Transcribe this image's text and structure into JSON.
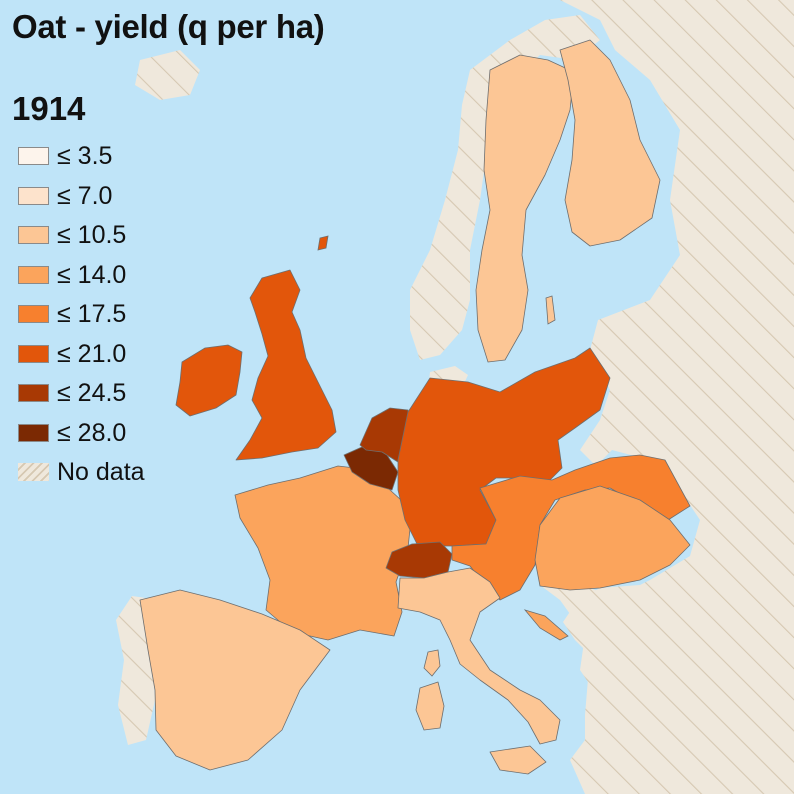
{
  "title": "Oat - yield (q per ha)",
  "year": "1914",
  "legend": [
    {
      "label": "≤ 3.5",
      "color": "#fdf4ec"
    },
    {
      "label": "≤ 7.0",
      "color": "#fde3cc"
    },
    {
      "label": "≤ 10.5",
      "color": "#fcc695"
    },
    {
      "label": "≤ 14.0",
      "color": "#fba45c"
    },
    {
      "label": "≤ 17.5",
      "color": "#f7802e"
    },
    {
      "label": "≤ 21.0",
      "color": "#e2560b"
    },
    {
      "label": "≤ 24.5",
      "color": "#a83904"
    },
    {
      "label": "≤ 28.0",
      "color": "#7b2903"
    },
    {
      "label": "No data",
      "color": "#efe8dc"
    }
  ],
  "regions": {
    "united_kingdom": {
      "class": "≤ 21.0",
      "color": "#e2560b"
    },
    "ireland": {
      "class": "≤ 21.0",
      "color": "#e2560b"
    },
    "germany": {
      "class": "≤ 21.0",
      "color": "#e2560b"
    },
    "netherlands": {
      "class": "≤ 24.5",
      "color": "#a83904"
    },
    "belgium": {
      "class": "≤ 28.0",
      "color": "#7b2903"
    },
    "switzerland": {
      "class": "≤ 24.5",
      "color": "#a83904"
    },
    "austria": {
      "class": "≤ 17.5",
      "color": "#f7802e"
    },
    "hungary": {
      "class": "≤ 14.0",
      "color": "#fba45c"
    },
    "france": {
      "class": "≤ 14.0",
      "color": "#fba45c"
    },
    "sweden": {
      "class": "≤ 10.5",
      "color": "#fcc695"
    },
    "finland": {
      "class": "≤ 10.5",
      "color": "#fcc695"
    },
    "spain": {
      "class": "≤ 10.5",
      "color": "#fcc695"
    },
    "italy": {
      "class": "≤ 10.5",
      "color": "#fcc695"
    },
    "no_data_land": {
      "color": "#efe8dc"
    },
    "sea": {
      "color": "#bfe4f8"
    }
  }
}
